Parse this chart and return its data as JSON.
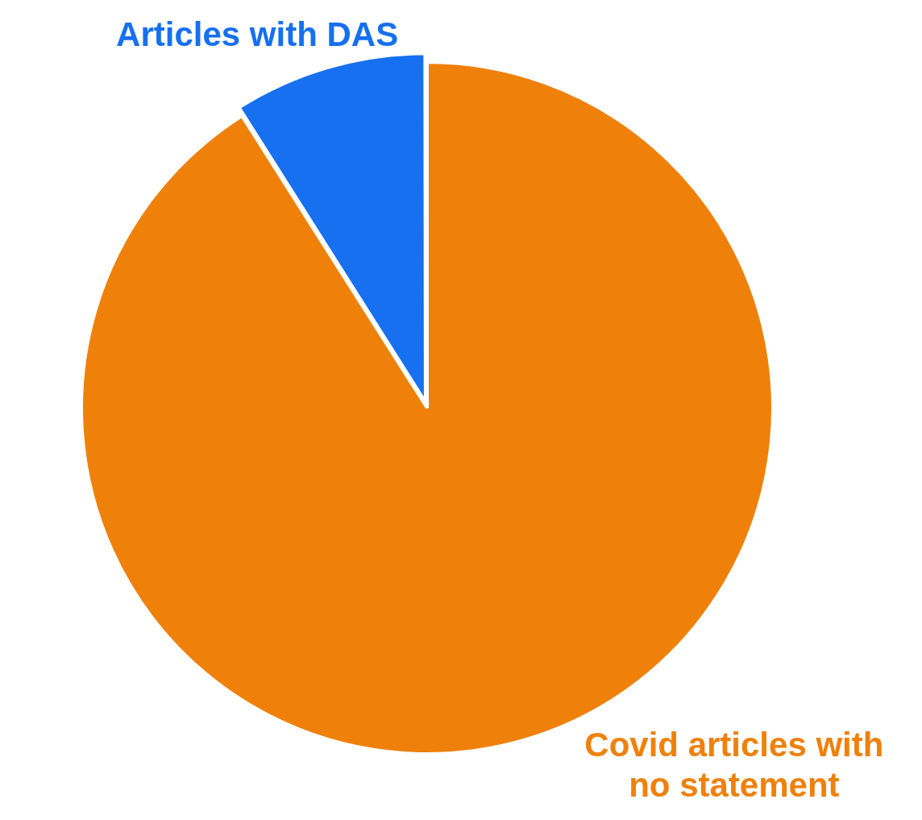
{
  "chart_data": {
    "type": "pie",
    "categories": [
      "Covid articles with no statement",
      "Articles with DAS"
    ],
    "values": [
      91,
      9
    ],
    "colors": [
      "#ef810b",
      "#1670ef"
    ],
    "legend": false
  }
}
